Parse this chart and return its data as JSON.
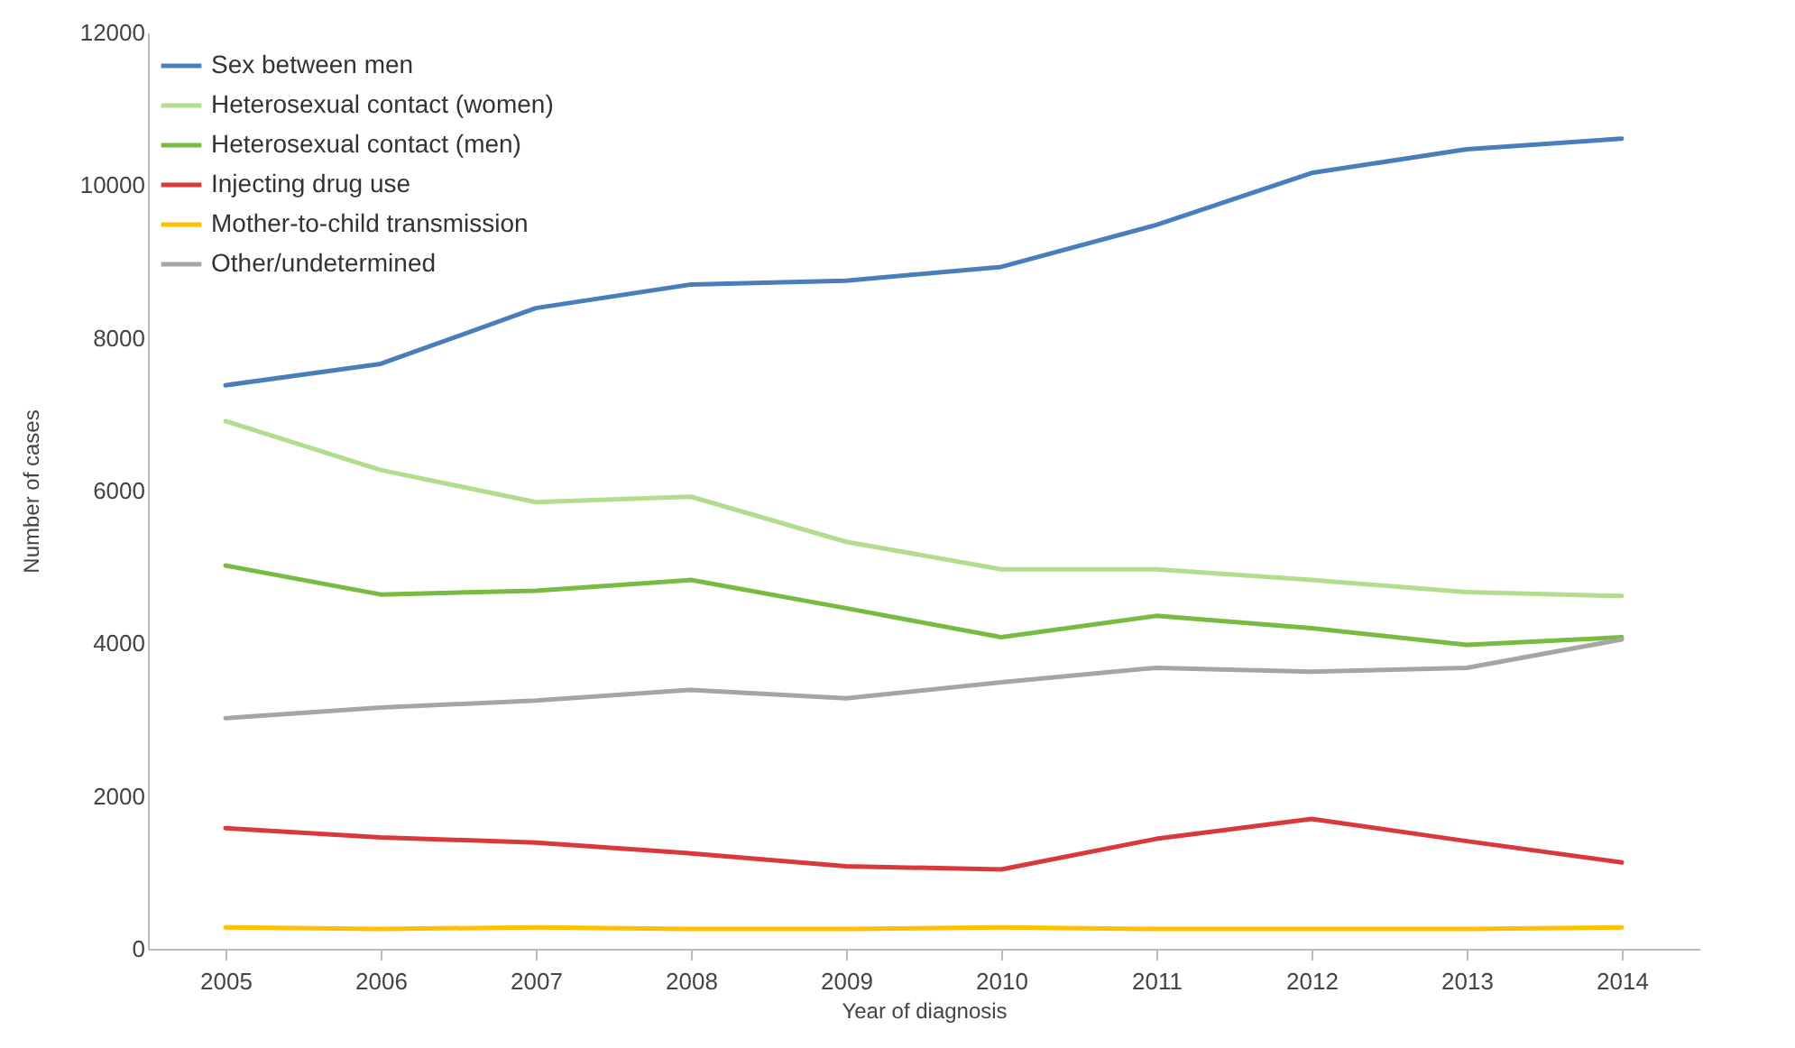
{
  "chart_data": {
    "type": "line",
    "xlabel": "Year of diagnosis",
    "ylabel": "Number of cases",
    "categories": [
      "2005",
      "2006",
      "2007",
      "2008",
      "2009",
      "2010",
      "2011",
      "2012",
      "2013",
      "2014"
    ],
    "ylim": [
      0,
      12000
    ],
    "yticks": [
      0,
      2000,
      4000,
      6000,
      8000,
      10000,
      12000
    ],
    "grid": false,
    "legend": "top left",
    "marker": "none",
    "line_style": "solid",
    "series": [
      {
        "name": "Sex between men",
        "color": "#4a7ebb",
        "values": [
          7380,
          7660,
          8390,
          8700,
          8750,
          8930,
          9480,
          10160,
          10470,
          10610
        ]
      },
      {
        "name": "Heterosexual contact (women)",
        "color": "#b3dc8c",
        "values": [
          6910,
          6270,
          5850,
          5920,
          5330,
          4970,
          4970,
          4830,
          4670,
          4620
        ]
      },
      {
        "name": "Heterosexual contact (men)",
        "color": "#77bb41",
        "values": [
          5020,
          4640,
          4690,
          4830,
          4460,
          4080,
          4360,
          4200,
          3980,
          4080
        ]
      },
      {
        "name": "Injecting drug use",
        "color": "#d9393b",
        "values": [
          1580,
          1460,
          1390,
          1250,
          1080,
          1040,
          1440,
          1700,
          1410,
          1130
        ]
      },
      {
        "name": "Mother-to-child transmission",
        "color": "#ffc000",
        "values": [
          280,
          260,
          280,
          260,
          260,
          280,
          260,
          260,
          260,
          280
        ]
      },
      {
        "name": "Other/undetermined",
        "color": "#a5a5a5",
        "values": [
          3020,
          3160,
          3250,
          3390,
          3280,
          3490,
          3680,
          3630,
          3680,
          4050
        ]
      }
    ]
  }
}
